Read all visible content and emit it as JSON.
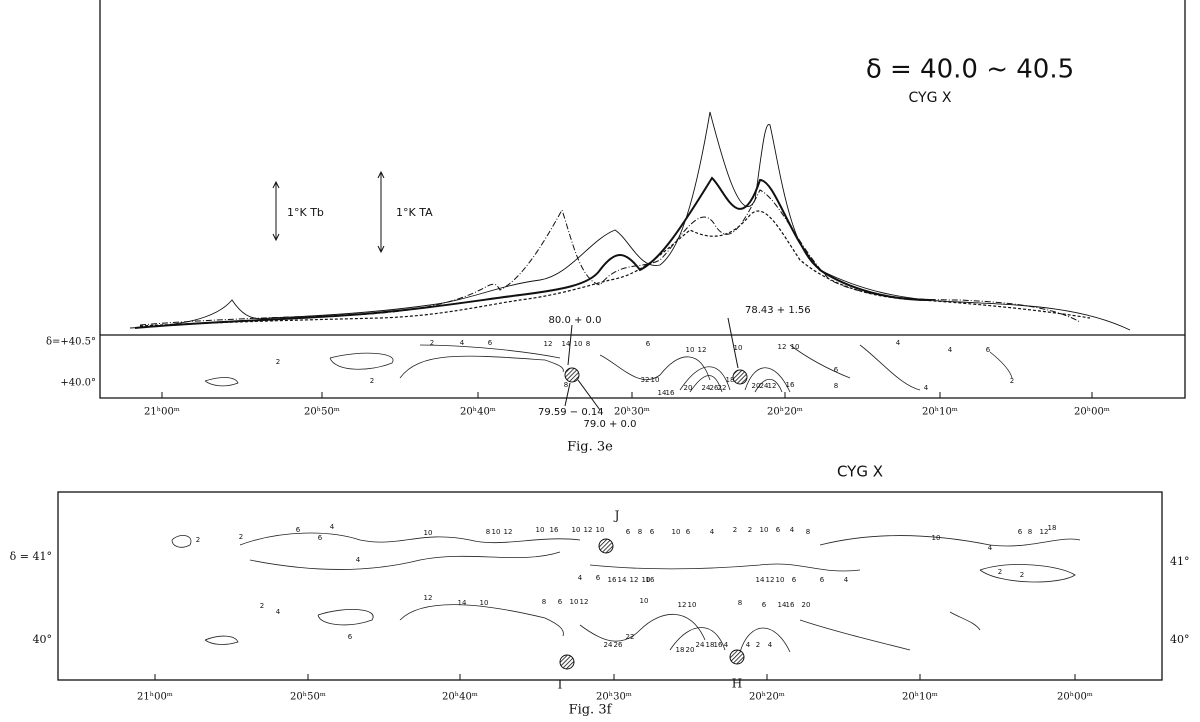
{
  "fig3e": {
    "title": "δ = 40.0 ~ 40.5",
    "source": "CYG X",
    "scale_bars": [
      "1°K Tb",
      "1°K TA"
    ],
    "dec_labels": [
      "δ=+40.5°",
      "+40.0°"
    ],
    "ra_labels": [
      "21ʰ00ᵐ",
      "20ʰ50ᵐ",
      "20ʰ40ᵐ",
      "20ʰ30ᵐ",
      "20ʰ20ᵐ",
      "20ʰ10ᵐ",
      "20ʰ00ᵐ"
    ],
    "annotations": [
      "80.0 + 0.0",
      "78.43 + 1.56",
      "79.59 − 0.14",
      "79.0 + 0.0"
    ],
    "contour_labels": [
      "2",
      "2",
      "2",
      "4",
      "6",
      "12",
      "14",
      "10",
      "8",
      "6",
      "10",
      "12",
      "10",
      "12",
      "10",
      "8",
      "32",
      "10",
      "14",
      "16",
      "20",
      "24",
      "26",
      "22",
      "18",
      "20",
      "24",
      "12",
      "16",
      "6",
      "8",
      "4",
      "4",
      "4",
      "6",
      "2"
    ],
    "caption": "Fig. 3e"
  },
  "fig3f": {
    "source": "CYG X",
    "dec_labels_left": [
      "δ = 41°",
      "40°"
    ],
    "dec_labels_right": [
      "41°",
      "40°"
    ],
    "ra_labels": [
      "21ʰ00ᵐ",
      "20ʰ50ᵐ",
      "20ʰ40ᵐ",
      "20ʰ30ᵐ",
      "20ʰ20ᵐ",
      "20ʰ10ᵐ",
      "20ʰ00ᵐ"
    ],
    "markers": [
      "J",
      "I",
      "H"
    ],
    "contour_labels": [
      "2",
      "2",
      "6",
      "4",
      "6",
      "4",
      "10",
      "8",
      "10",
      "12",
      "10",
      "16",
      "10",
      "12",
      "10",
      "6",
      "4",
      "6",
      "8",
      "6",
      "10",
      "6",
      "4",
      "2",
      "2",
      "10",
      "6",
      "4",
      "8",
      "6",
      "4",
      "10",
      "6",
      "8",
      "12",
      "18",
      "16",
      "14",
      "12",
      "10",
      "16",
      "14",
      "12",
      "10",
      "6",
      "4",
      "2",
      "2",
      "2",
      "4",
      "6",
      "12",
      "14",
      "10",
      "8",
      "6",
      "10",
      "12",
      "10",
      "12",
      "10",
      "8",
      "6",
      "14",
      "16",
      "20",
      "24",
      "26",
      "22",
      "18",
      "20",
      "24",
      "18",
      "16",
      "4",
      "4",
      "2",
      "4"
    ],
    "caption": "Fig. 3f"
  }
}
